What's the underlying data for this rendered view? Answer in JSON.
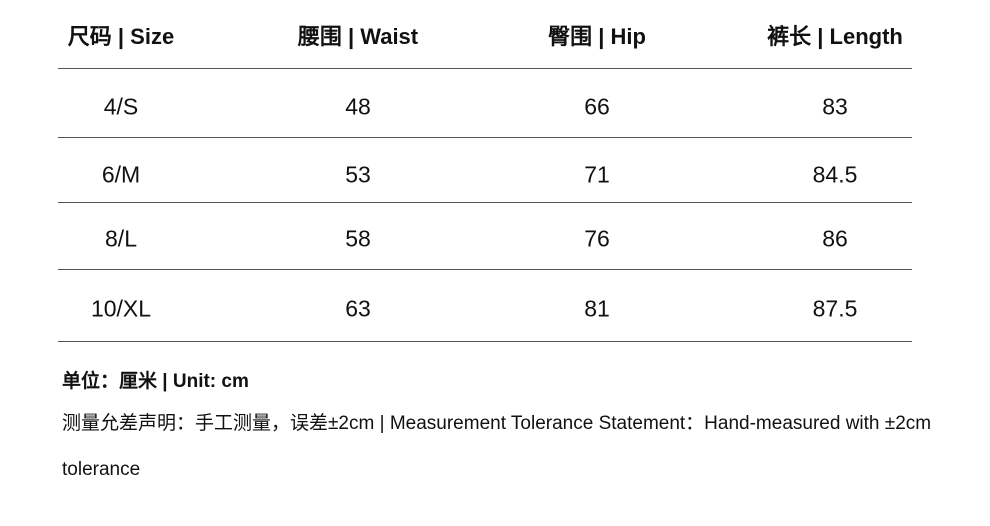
{
  "table": {
    "header": [
      "尺码 | Size",
      "腰围 | Waist",
      "臀围 | Hip",
      "裤长 | Length"
    ],
    "rows": [
      [
        "4/S",
        48,
        66,
        83
      ],
      [
        "6/M",
        53,
        71,
        84.5
      ],
      [
        "8/L",
        58,
        76,
        86
      ],
      [
        "10/XL",
        63,
        81,
        87.5
      ]
    ]
  },
  "notes": {
    "unit": "单位：厘米 | Unit: cm",
    "tolerance": "测量允差声明：手工测量，误差±2cm | Measurement Tolerance Statement：Hand-measured with ±2cm tolerance"
  }
}
